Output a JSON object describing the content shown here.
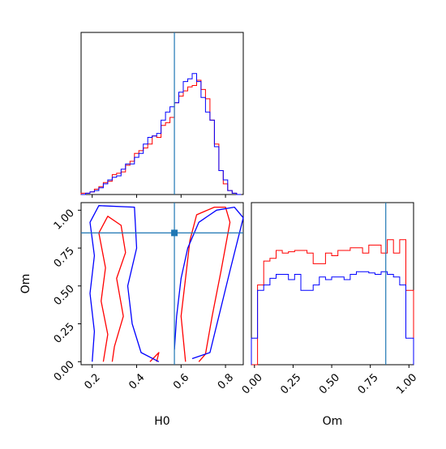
{
  "colors": {
    "series_a": "#ff0000",
    "series_b": "#0000ff",
    "truth": "#1f77b4",
    "frame": "#000000"
  },
  "chart_data": [
    {
      "panel": "H0-marginal",
      "type": "histogram",
      "xlim": [
        0.15,
        0.88
      ],
      "ylim": [
        0,
        1.0
      ],
      "ticks_labelled": false,
      "bins": [
        0.15,
        0.17,
        0.19,
        0.21,
        0.23,
        0.25,
        0.27,
        0.29,
        0.31,
        0.33,
        0.35,
        0.37,
        0.39,
        0.41,
        0.43,
        0.45,
        0.47,
        0.49,
        0.51,
        0.53,
        0.55,
        0.57,
        0.59,
        0.61,
        0.63,
        0.65,
        0.67,
        0.69,
        0.71,
        0.73,
        0.75,
        0.77,
        0.79,
        0.81,
        0.83,
        0.85,
        0.87
      ],
      "series": [
        {
          "color_key": "series_a",
          "values": [
            0.01,
            0.01,
            0.02,
            0.04,
            0.06,
            0.09,
            0.1,
            0.15,
            0.16,
            0.17,
            0.22,
            0.25,
            0.31,
            0.33,
            0.35,
            0.38,
            0.44,
            0.43,
            0.52,
            0.54,
            0.58,
            0.69,
            0.74,
            0.78,
            0.81,
            0.82,
            0.86,
            0.79,
            0.72,
            0.56,
            0.38,
            0.18,
            0.08,
            0.03,
            0.01,
            0.0
          ]
        },
        {
          "color_key": "series_b",
          "values": [
            0.0,
            0.01,
            0.02,
            0.03,
            0.05,
            0.08,
            0.11,
            0.13,
            0.14,
            0.19,
            0.23,
            0.23,
            0.28,
            0.31,
            0.38,
            0.43,
            0.44,
            0.46,
            0.56,
            0.62,
            0.66,
            0.69,
            0.77,
            0.85,
            0.87,
            0.91,
            0.85,
            0.73,
            0.62,
            0.56,
            0.36,
            0.18,
            0.11,
            0.03,
            0.01,
            0.0
          ]
        }
      ],
      "truth_x": 0.57
    },
    {
      "panel": "H0-Om-joint",
      "type": "contour",
      "xlabel": "H0",
      "ylabel": "Om",
      "xlim": [
        0.15,
        0.88
      ],
      "ylim": [
        -0.02,
        1.05
      ],
      "xticks": [
        "0.2",
        "0.4",
        "0.6",
        "0.8"
      ],
      "yticks": [
        "0.00",
        "0.25",
        "0.50",
        "0.75",
        "1.00"
      ],
      "truth_point": [
        0.57,
        0.85
      ],
      "contours": [
        {
          "color_key": "series_a",
          "points": [
            [
              0.25,
              0.0
            ],
            [
              0.27,
              0.18
            ],
            [
              0.24,
              0.4
            ],
            [
              0.26,
              0.62
            ],
            [
              0.23,
              0.85
            ],
            [
              0.27,
              0.96
            ],
            [
              0.33,
              0.9
            ],
            [
              0.35,
              0.72
            ],
            [
              0.31,
              0.55
            ],
            [
              0.34,
              0.3
            ],
            [
              0.3,
              0.1
            ],
            [
              0.29,
              0.0
            ]
          ]
        },
        {
          "color_key": "series_a",
          "points": [
            [
              0.46,
              0.0
            ],
            [
              0.5,
              0.06
            ],
            [
              0.49,
              0.0
            ]
          ]
        },
        {
          "color_key": "series_a",
          "points": [
            [
              0.62,
              0.0
            ],
            [
              0.6,
              0.3
            ],
            [
              0.62,
              0.55
            ],
            [
              0.64,
              0.8
            ],
            [
              0.67,
              0.97
            ],
            [
              0.75,
              1.02
            ],
            [
              0.8,
              1.02
            ],
            [
              0.82,
              0.92
            ],
            [
              0.78,
              0.6
            ],
            [
              0.74,
              0.3
            ],
            [
              0.71,
              0.05
            ],
            [
              0.68,
              0.0
            ]
          ]
        },
        {
          "color_key": "series_b",
          "points": [
            [
              0.2,
              0.0
            ],
            [
              0.21,
              0.2
            ],
            [
              0.19,
              0.45
            ],
            [
              0.21,
              0.7
            ],
            [
              0.19,
              0.92
            ],
            [
              0.23,
              1.03
            ],
            [
              0.39,
              1.02
            ],
            [
              0.4,
              0.75
            ],
            [
              0.36,
              0.5
            ],
            [
              0.38,
              0.25
            ],
            [
              0.42,
              0.06
            ],
            [
              0.5,
              0.0
            ]
          ]
        },
        {
          "color_key": "series_b",
          "points": [
            [
              0.57,
              0.08
            ],
            [
              0.58,
              0.3
            ],
            [
              0.6,
              0.55
            ],
            [
              0.63,
              0.75
            ],
            [
              0.68,
              0.92
            ],
            [
              0.76,
              1.0
            ],
            [
              0.84,
              1.02
            ],
            [
              0.88,
              0.95
            ],
            [
              0.82,
              0.6
            ],
            [
              0.77,
              0.3
            ],
            [
              0.73,
              0.06
            ],
            [
              0.65,
              0.02
            ]
          ]
        }
      ]
    },
    {
      "panel": "Om-marginal",
      "type": "histogram",
      "xlabel": "Om",
      "xlim": [
        -0.02,
        1.03
      ],
      "ylim": [
        0,
        1.0
      ],
      "xticks": [
        "0.00",
        "0.25",
        "0.50",
        "0.75",
        "1.00"
      ],
      "bins": [
        -0.02,
        0.02,
        0.06,
        0.1,
        0.14,
        0.18,
        0.22,
        0.26,
        0.3,
        0.34,
        0.38,
        0.42,
        0.46,
        0.5,
        0.54,
        0.58,
        0.62,
        0.66,
        0.7,
        0.74,
        0.78,
        0.82,
        0.86,
        0.9,
        0.94,
        0.98,
        1.03
      ],
      "series": [
        {
          "color_key": "series_a",
          "values": [
            0.0,
            0.6,
            0.78,
            0.8,
            0.86,
            0.84,
            0.85,
            0.86,
            0.86,
            0.84,
            0.76,
            0.76,
            0.84,
            0.82,
            0.86,
            0.86,
            0.88,
            0.88,
            0.84,
            0.9,
            0.9,
            0.84,
            0.94,
            0.84,
            0.94,
            0.56
          ]
        },
        {
          "color_key": "series_b",
          "values": [
            0.2,
            0.56,
            0.6,
            0.65,
            0.68,
            0.68,
            0.64,
            0.68,
            0.56,
            0.56,
            0.6,
            0.66,
            0.64,
            0.66,
            0.66,
            0.64,
            0.68,
            0.7,
            0.7,
            0.69,
            0.68,
            0.7,
            0.68,
            0.66,
            0.6,
            0.2
          ]
        }
      ],
      "truth_x": 0.85
    }
  ]
}
